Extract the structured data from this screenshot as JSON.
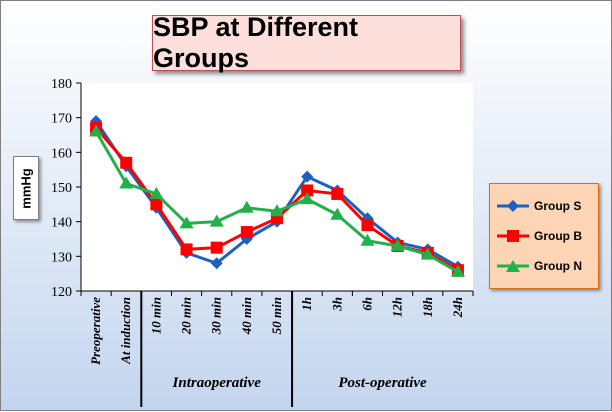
{
  "title": "SBP at Different Groups",
  "chart_data": {
    "type": "line",
    "title": "SBP at Different Groups",
    "ylabel": "mmHg",
    "ylim": [
      120,
      180
    ],
    "yticks": [
      120,
      130,
      140,
      150,
      160,
      170,
      180
    ],
    "categories": [
      "Preoperative",
      "At induction",
      "10 min",
      "20 min",
      "30 min",
      "40 min",
      "50 min",
      "1h",
      "3h",
      "6h",
      "12h",
      "18h",
      "24h"
    ],
    "groups": [
      {
        "label": "Intraoperative",
        "from": 2,
        "to": 6
      },
      {
        "label": "Post-operative",
        "from": 7,
        "to": 12
      }
    ],
    "series": [
      {
        "name": "Group S",
        "marker": "diamond",
        "color": "#1f5fbf",
        "values": [
          169,
          156,
          144,
          131,
          128,
          135,
          140,
          153,
          149,
          141,
          134,
          132,
          127
        ]
      },
      {
        "name": "Group B",
        "marker": "square",
        "color": "#ff0000",
        "values": [
          167,
          157,
          145,
          132,
          132.5,
          137,
          141,
          149,
          148,
          139,
          133,
          131,
          126
        ]
      },
      {
        "name": "Group N",
        "marker": "triangle",
        "color": "#22b04a",
        "values": [
          166,
          151,
          148,
          139.5,
          140,
          144,
          143,
          146.5,
          142,
          134.5,
          133,
          130.5,
          125.5
        ]
      }
    ],
    "legend_position": "right",
    "grid": false
  }
}
